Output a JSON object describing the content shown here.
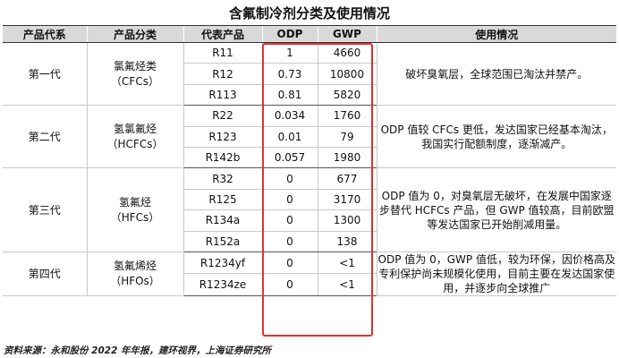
{
  "title": "含氟制冷剂分类及使用情况",
  "headers": [
    "产品代系",
    "产品分类",
    "代表产品",
    "ODP",
    "GWP",
    "使用情况"
  ],
  "groups": [
    {
      "generation": "第一代",
      "class_name": "氯氟烃类",
      "class_abbr": "（CFCs）",
      "usage": "破坏臭氧层，全球范围已淘汰并禁产。",
      "rows": [
        {
          "product": "R11",
          "odp": "1",
          "gwp": "4660"
        },
        {
          "product": "R12",
          "odp": "0.73",
          "gwp": "10800"
        },
        {
          "product": "R113",
          "odp": "0.81",
          "gwp": "5820"
        }
      ]
    },
    {
      "generation": "第二代",
      "class_name": "氢氯氟烃",
      "class_abbr": "（HCFCs）",
      "usage": "ODP 值较 CFCs 更低，发达国家已经基本淘汰，我国实行配额制度，逐渐减产。",
      "rows": [
        {
          "product": "R22",
          "odp": "0.034",
          "gwp": "1760"
        },
        {
          "product": "R123",
          "odp": "0.01",
          "gwp": "79"
        },
        {
          "product": "R142b",
          "odp": "0.057",
          "gwp": "1980"
        }
      ]
    },
    {
      "generation": "第三代",
      "class_name": "氢氟烃",
      "class_abbr": "（HFCs）",
      "usage": "ODP 值为 0，对臭氧层无破坏，在发展中国家逐步替代 HCFCs 产品，但 GWP 值较高，目前欧盟等发达国家已开始削减用量。",
      "rows": [
        {
          "product": "R32",
          "odp": "0",
          "gwp": "677"
        },
        {
          "product": "R125",
          "odp": "0",
          "gwp": "3170"
        },
        {
          "product": "R134a",
          "odp": "0",
          "gwp": "1300"
        },
        {
          "product": "R152a",
          "odp": "0",
          "gwp": "138"
        }
      ]
    },
    {
      "generation": "第四代",
      "class_name": "氢氟烯烃",
      "class_abbr": "（HFOs）",
      "usage": "ODP 值为 0，GWP 值低，较为环保，因价格高及专利保护尚未规模化使用，目前主要在发达国家使用，并逐步向全球推广",
      "rows": [
        {
          "product": "R1234yf",
          "odp": "0",
          "gwp": "<1"
        },
        {
          "product": "R1234ze",
          "odp": "0",
          "gwp": "<1"
        }
      ]
    }
  ],
  "source": "资料来源：永和股份 2022 年年报，建环视界，上海证券研究所",
  "colors": {
    "highlight": "#e03131",
    "header_bg": "#d9d9d9"
  }
}
